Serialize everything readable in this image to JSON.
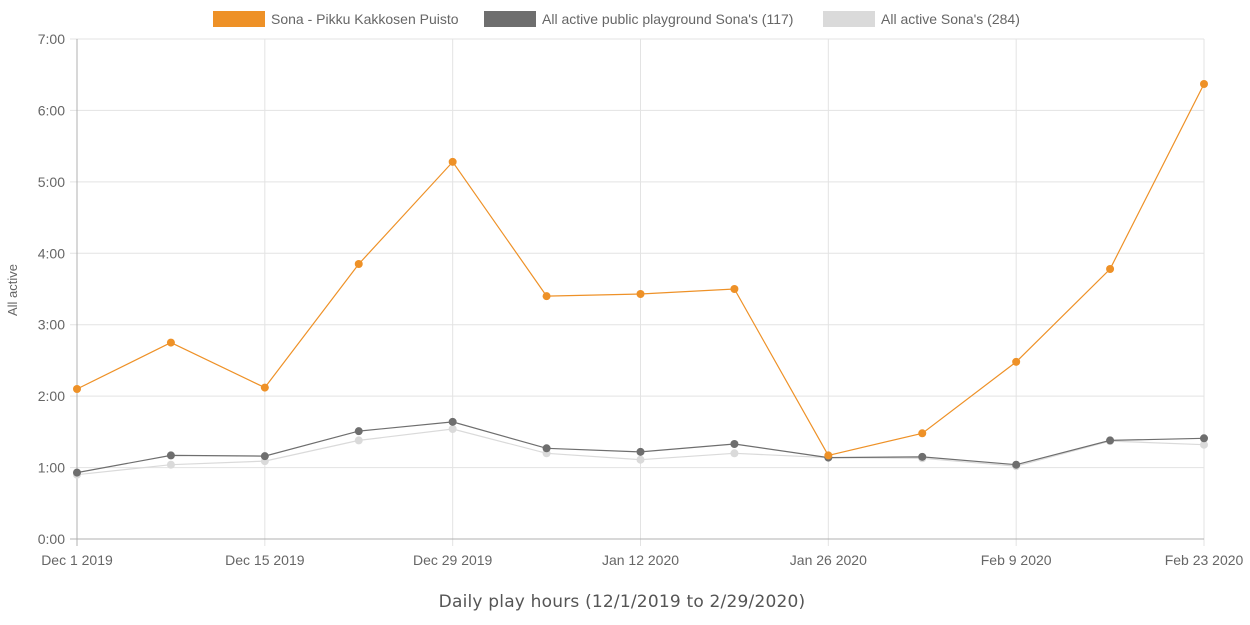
{
  "chart_data": {
    "type": "line",
    "title": "",
    "xlabel": "Daily play hours (12/1/2019 to 2/29/2020)",
    "ylabel": "All active",
    "x": [
      "2019-12-01",
      "2019-12-08",
      "2019-12-15",
      "2019-12-22",
      "2019-12-29",
      "2020-01-05",
      "2020-01-12",
      "2020-01-19",
      "2020-01-26",
      "2020-02-02",
      "2020-02-09",
      "2020-02-16",
      "2020-02-23"
    ],
    "x_ticks": [
      {
        "index": 0,
        "label": "Dec 1 2019"
      },
      {
        "index": 2,
        "label": "Dec 15 2019"
      },
      {
        "index": 4,
        "label": "Dec 29 2019"
      },
      {
        "index": 6,
        "label": "Jan 12 2020"
      },
      {
        "index": 8,
        "label": "Jan 26 2020"
      },
      {
        "index": 10,
        "label": "Feb 9 2020"
      },
      {
        "index": 12,
        "label": "Feb 23 2020"
      }
    ],
    "y_ticks": [
      "0:00",
      "1:00",
      "2:00",
      "3:00",
      "4:00",
      "5:00",
      "6:00",
      "7:00"
    ],
    "ylim": [
      0,
      7
    ],
    "grid": true,
    "legend_position": "top",
    "series": [
      {
        "name": "Sona - Pikku Kakkosen Puisto",
        "color": "#ee9127",
        "values": [
          2.1,
          2.75,
          2.12,
          3.85,
          5.28,
          3.4,
          3.43,
          3.5,
          1.17,
          1.48,
          2.48,
          3.78,
          6.37
        ]
      },
      {
        "name": "All active public playground Sona's (117)",
        "color": "#6e6e6e",
        "values": [
          0.93,
          1.17,
          1.16,
          1.51,
          1.64,
          1.27,
          1.22,
          1.33,
          1.14,
          1.15,
          1.04,
          1.38,
          1.41
        ]
      },
      {
        "name": "All active Sona's (284)",
        "color": "#dadada",
        "values": [
          0.9,
          1.04,
          1.09,
          1.38,
          1.54,
          1.2,
          1.11,
          1.2,
          1.14,
          1.13,
          1.02,
          1.37,
          1.32
        ]
      }
    ]
  }
}
